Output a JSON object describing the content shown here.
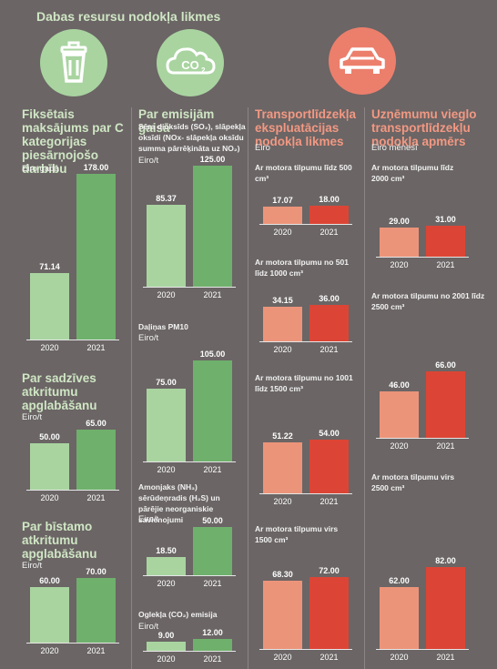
{
  "title": "Dabas resursu nodokļa likmes",
  "colors": {
    "green_light": "#a9d4a0",
    "green_dark": "#6fb06c",
    "red_light": "#ec9479",
    "red_dark": "#dc4535",
    "icon_green": "#a9d4a0",
    "icon_red": "#ec7f6c"
  },
  "icons": [
    "trash-icon",
    "co2-cloud-icon",
    "car-icon"
  ],
  "sections": {
    "c1": {
      "title": "Fiksētais maksājums par C kategorijas piesārņojošo darbību",
      "unit": "Eiro gadā"
    },
    "c2": {
      "title": "Par sadzīves atkritumu apglabāšanu",
      "unit": "Eiro/t"
    },
    "c3": {
      "title": "Par bīstamo atkritumu apglabāšanu",
      "unit": "Eiro/t"
    },
    "e1": {
      "title": "Par emisijām gaisā",
      "sub": "Sēra dioksīds (SO₂), slāpekļa oksīdi (NOx- slāpekļa oksīdu summa pārrēķināta uz NO₂)",
      "unit": "Eiro/t"
    },
    "e2": {
      "sub": "Daļiņas PM10",
      "unit": "Eiro/t"
    },
    "e3": {
      "sub": "Amonjaks (NH₃) sērūdeņradis (H₂S) un pārējie neorganiskie savienojumi",
      "unit": "Eiro/t"
    },
    "e4": {
      "sub": "Oglekļa (CO₂) emisija",
      "unit": "Eiro/t"
    },
    "t": {
      "title": "Transportlīdzekļa ekspluatācijas nodokļa likmes",
      "unit": "Eiro",
      "subs": [
        "Ar motora tilpumu līdz 500 cm³",
        "Ar motora tilpumu no 501 līdz 1000 cm³",
        "Ar motora tilpumu no 1001 līdz 1500 cm³",
        "Ar motora tilpumu virs 1500 cm³"
      ]
    },
    "u": {
      "title": "Uzņēmumu vieglo transportlīdzekļu nodokļa apmērs",
      "unit": "Eiro mēnesī",
      "subs": [
        "Ar motora tilpumu līdz 2000 cm³",
        "Ar motora tilpumu no 2001 līdz 2500 cm³",
        "Ar motora tilpumu virs 2500 cm³"
      ]
    }
  },
  "chart_data": [
    {
      "type": "bar",
      "id": "c1",
      "categories": [
        "2020",
        "2021"
      ],
      "values": [
        71.14,
        178.0
      ],
      "labels": [
        "71.14",
        "178.00"
      ]
    },
    {
      "type": "bar",
      "id": "c2",
      "categories": [
        "2020",
        "2021"
      ],
      "values": [
        50.0,
        65.0
      ],
      "labels": [
        "50.00",
        "65.00"
      ]
    },
    {
      "type": "bar",
      "id": "c3",
      "categories": [
        "2020",
        "2021"
      ],
      "values": [
        60.0,
        70.0
      ],
      "labels": [
        "60.00",
        "70.00"
      ]
    },
    {
      "type": "bar",
      "id": "e1",
      "categories": [
        "2020",
        "2021"
      ],
      "values": [
        85.37,
        125.0
      ],
      "labels": [
        "85.37",
        "125.00"
      ]
    },
    {
      "type": "bar",
      "id": "e2",
      "categories": [
        "2020",
        "2021"
      ],
      "values": [
        75.0,
        105.0
      ],
      "labels": [
        "75.00",
        "105.00"
      ]
    },
    {
      "type": "bar",
      "id": "e3",
      "categories": [
        "2020",
        "2021"
      ],
      "values": [
        18.5,
        50.0
      ],
      "labels": [
        "18.50",
        "50.00"
      ]
    },
    {
      "type": "bar",
      "id": "e4",
      "categories": [
        "2020",
        "2021"
      ],
      "values": [
        9.0,
        12.0
      ],
      "labels": [
        "9.00",
        "12.00"
      ]
    },
    {
      "type": "bar",
      "id": "t1",
      "categories": [
        "2020",
        "2021"
      ],
      "values": [
        17.07,
        18.0
      ],
      "labels": [
        "17.07",
        "18.00"
      ]
    },
    {
      "type": "bar",
      "id": "t2",
      "categories": [
        "2020",
        "2021"
      ],
      "values": [
        34.15,
        36.0
      ],
      "labels": [
        "34.15",
        "36.00"
      ]
    },
    {
      "type": "bar",
      "id": "t3",
      "categories": [
        "2020",
        "2021"
      ],
      "values": [
        51.22,
        54.0
      ],
      "labels": [
        "51.22",
        "54.00"
      ]
    },
    {
      "type": "bar",
      "id": "t4",
      "categories": [
        "2020",
        "2021"
      ],
      "values": [
        68.3,
        72.0
      ],
      "labels": [
        "68.30",
        "72.00"
      ]
    },
    {
      "type": "bar",
      "id": "u1",
      "categories": [
        "2020",
        "2021"
      ],
      "values": [
        29.0,
        31.0
      ],
      "labels": [
        "29.00",
        "31.00"
      ]
    },
    {
      "type": "bar",
      "id": "u2",
      "categories": [
        "2020",
        "2021"
      ],
      "values": [
        46.0,
        66.0
      ],
      "labels": [
        "46.00",
        "66.00"
      ]
    },
    {
      "type": "bar",
      "id": "u3",
      "categories": [
        "2020",
        "2021"
      ],
      "values": [
        62.0,
        82.0
      ],
      "labels": [
        "62.00",
        "82.00"
      ]
    }
  ]
}
